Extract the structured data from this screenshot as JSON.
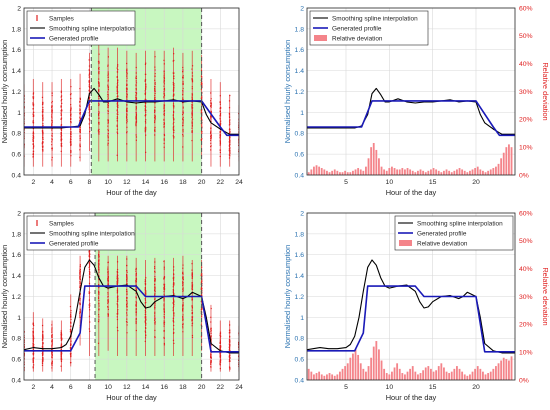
{
  "colors": {
    "samples": "#e02020",
    "spline": "#000000",
    "profile": "#1a1ab8",
    "deviation": "#f4848a",
    "axis_left_blue": "#2a72b0",
    "axis_right_red": "#e02020",
    "shade": "#c8f7c0",
    "dashed": "#555555"
  },
  "chart_data": [
    {
      "type": "line",
      "id": "panel-a",
      "xlabel": "Hour of the day",
      "ylabel": "Normalised hourly consumption",
      "xlim": [
        1,
        24
      ],
      "ylim": [
        0.4,
        2
      ],
      "xticks": [
        2,
        4,
        6,
        8,
        10,
        12,
        14,
        16,
        18,
        20,
        22,
        24
      ],
      "yticks": [
        0.4,
        0.6,
        0.8,
        1,
        1.2,
        1.4,
        1.6,
        1.8,
        2
      ],
      "grid": true,
      "shaded_range": [
        8.2,
        20
      ],
      "dashed_lines": [
        8.2,
        20
      ],
      "legend": {
        "position": "top-left",
        "entries": [
          "Samples",
          "Smoothing spline interpolation",
          "Generated profile"
        ]
      },
      "samples": {
        "hours": [
          1,
          2,
          3,
          4,
          5,
          6,
          7,
          8,
          9,
          10,
          11,
          12,
          13,
          14,
          15,
          16,
          17,
          18,
          19,
          20,
          21,
          22,
          23,
          24
        ],
        "center": [
          0.86,
          0.86,
          0.86,
          0.86,
          0.86,
          0.86,
          0.9,
          1.2,
          1.12,
          1.1,
          1.12,
          1.1,
          1.1,
          1.1,
          1.1,
          1.1,
          1.12,
          1.1,
          1.1,
          1.1,
          0.88,
          0.82,
          0.78,
          0.78
        ],
        "min": [
          0.45,
          0.45,
          0.45,
          0.45,
          0.45,
          0.45,
          0.5,
          0.6,
          0.5,
          0.5,
          0.5,
          0.5,
          0.5,
          0.5,
          0.5,
          0.5,
          0.5,
          0.5,
          0.5,
          0.55,
          0.45,
          0.45,
          0.45,
          0.5
        ],
        "max": [
          1.3,
          1.35,
          1.32,
          1.32,
          1.35,
          1.35,
          1.4,
          1.6,
          1.72,
          1.65,
          1.65,
          1.62,
          1.6,
          1.62,
          1.62,
          1.62,
          1.65,
          1.6,
          1.62,
          1.58,
          1.35,
          1.32,
          1.2,
          1.1
        ]
      },
      "series": [
        {
          "name": "Smoothing spline interpolation",
          "x": [
            1,
            2,
            3,
            4,
            5,
            6,
            7,
            7.5,
            8,
            8.5,
            9,
            9.5,
            10,
            11,
            12,
            13,
            14,
            15,
            16,
            17,
            18,
            19,
            20,
            20.5,
            21,
            22,
            23,
            24
          ],
          "y": [
            0.85,
            0.85,
            0.85,
            0.85,
            0.85,
            0.86,
            0.87,
            0.98,
            1.18,
            1.23,
            1.17,
            1.1,
            1.1,
            1.13,
            1.1,
            1.09,
            1.1,
            1.1,
            1.11,
            1.12,
            1.1,
            1.11,
            1.1,
            0.98,
            0.9,
            0.84,
            0.79,
            0.79
          ]
        },
        {
          "name": "Generated profile",
          "x": [
            1,
            6.8,
            8,
            20,
            22,
            22.7,
            24
          ],
          "y": [
            0.86,
            0.86,
            1.11,
            1.11,
            0.86,
            0.78,
            0.78
          ]
        }
      ]
    },
    {
      "type": "line",
      "id": "panel-b",
      "xlabel": "Hour of the day",
      "ylabel": "Normalised hourly consumption",
      "y2label": "Relative deviation",
      "xlim": [
        0.5,
        24.5
      ],
      "ylim": [
        0.4,
        2
      ],
      "y2lim": [
        0,
        60
      ],
      "xticks": [
        5,
        10,
        15,
        20
      ],
      "yticks": [
        0.4,
        0.6,
        0.8,
        1,
        1.2,
        1.4,
        1.6,
        1.8,
        2
      ],
      "y2ticks": [
        "0%",
        "10%",
        "20%",
        "30%",
        "40%",
        "50%",
        "60%"
      ],
      "grid": true,
      "legend": {
        "position": "top-left",
        "entries": [
          "Smoothing spline interpolation",
          "Generated profile",
          "Relative deviation"
        ]
      },
      "series": [
        {
          "name": "Smoothing spline interpolation",
          "x": [
            0.5,
            2,
            4,
            6,
            6.8,
            7.5,
            8,
            8.5,
            9,
            9.5,
            10,
            11,
            12,
            13,
            14,
            15,
            16,
            17,
            18,
            19,
            20,
            20.5,
            21,
            22,
            23,
            24,
            24.5
          ],
          "y": [
            0.85,
            0.85,
            0.85,
            0.85,
            0.87,
            0.98,
            1.18,
            1.23,
            1.17,
            1.1,
            1.1,
            1.13,
            1.1,
            1.09,
            1.1,
            1.1,
            1.11,
            1.12,
            1.1,
            1.11,
            1.1,
            0.98,
            0.9,
            0.84,
            0.79,
            0.79,
            0.79
          ]
        },
        {
          "name": "Generated profile",
          "x": [
            0.5,
            6.8,
            8,
            20,
            22,
            22.7,
            24.5
          ],
          "y": [
            0.86,
            0.86,
            1.11,
            1.11,
            0.86,
            0.78,
            0.78
          ]
        }
      ],
      "deviation": {
        "x": [
          0.7,
          1,
          1.3,
          1.6,
          1.9,
          2.2,
          2.5,
          2.8,
          3.1,
          3.4,
          3.7,
          4,
          4.3,
          4.6,
          4.9,
          5.2,
          5.5,
          5.8,
          6.1,
          6.4,
          6.7,
          7,
          7.3,
          7.6,
          7.9,
          8.2,
          8.5,
          8.8,
          9.1,
          9.4,
          9.7,
          10,
          10.3,
          10.6,
          10.9,
          11.2,
          11.5,
          11.8,
          12.1,
          12.4,
          12.7,
          13,
          13.3,
          13.6,
          13.9,
          14.2,
          14.5,
          14.8,
          15.1,
          15.4,
          15.7,
          16,
          16.3,
          16.6,
          16.9,
          17.2,
          17.5,
          17.8,
          18.1,
          18.4,
          18.7,
          19,
          19.3,
          19.6,
          19.9,
          20.2,
          20.5,
          20.8,
          21.1,
          21.4,
          21.7,
          22,
          22.3,
          22.6,
          22.9,
          23.2,
          23.5,
          23.8,
          24.1
        ],
        "y": [
          1,
          2,
          3,
          3.5,
          3,
          2.5,
          2,
          1.5,
          1,
          1.5,
          2,
          1.5,
          1,
          1,
          1.5,
          1,
          1,
          1.5,
          2,
          2.5,
          2,
          1.5,
          3,
          6,
          10,
          11.5,
          9,
          6,
          3,
          2,
          1.5,
          2.5,
          3,
          2.5,
          2,
          2,
          2.5,
          2,
          2.5,
          2,
          1.5,
          1,
          1.5,
          2,
          1.5,
          1,
          1.5,
          2,
          2.5,
          2,
          1.5,
          1,
          1.5,
          2,
          1.5,
          1,
          1.5,
          2,
          2.5,
          2,
          1.5,
          1,
          1.5,
          2,
          2.5,
          3,
          2,
          1.5,
          1,
          1.5,
          2,
          2.5,
          3,
          4,
          6,
          8,
          10,
          11,
          10
        ]
      }
    },
    {
      "type": "line",
      "id": "panel-c",
      "xlabel": "Hour of the day",
      "ylabel": "Normalised hourly consumption",
      "xlim": [
        1,
        24
      ],
      "ylim": [
        0.4,
        2
      ],
      "xticks": [
        2,
        4,
        6,
        8,
        10,
        12,
        14,
        16,
        18,
        20,
        22,
        24
      ],
      "yticks": [
        0.4,
        0.6,
        0.8,
        1,
        1.2,
        1.4,
        1.6,
        1.8,
        2
      ],
      "grid": true,
      "shaded_range": [
        8.6,
        20
      ],
      "dashed_lines": [
        8.6,
        20
      ],
      "legend": {
        "position": "top-left",
        "entries": [
          "Samples",
          "Smoothing spline interpolation",
          "Generated profile"
        ]
      },
      "samples": {
        "hours": [
          1,
          2,
          3,
          4,
          5,
          6,
          7,
          8,
          9,
          10,
          11,
          12,
          13,
          14,
          15,
          16,
          17,
          18,
          19,
          20,
          21,
          22,
          23,
          24
        ],
        "center": [
          0.68,
          0.7,
          0.7,
          0.7,
          0.7,
          0.78,
          1.3,
          1.52,
          1.42,
          1.3,
          1.3,
          1.3,
          1.25,
          1.1,
          1.2,
          1.2,
          1.2,
          1.22,
          1.22,
          1.2,
          0.7,
          0.68,
          0.67,
          0.67
        ],
        "min": [
          0.45,
          0.45,
          0.45,
          0.45,
          0.45,
          0.5,
          0.7,
          0.6,
          0.6,
          0.65,
          0.6,
          0.6,
          0.6,
          0.6,
          0.6,
          0.6,
          0.6,
          0.6,
          0.6,
          0.65,
          0.45,
          0.45,
          0.45,
          0.45
        ],
        "max": [
          1.02,
          1.08,
          1.02,
          1.0,
          1.0,
          1.25,
          1.62,
          1.85,
          1.75,
          1.62,
          1.62,
          1.62,
          1.6,
          1.58,
          1.6,
          1.58,
          1.6,
          1.62,
          1.58,
          1.58,
          1.15,
          1.0,
          1.0,
          0.95
        ]
      },
      "series": [
        {
          "name": "Smoothing spline interpolation",
          "x": [
            1,
            2,
            3,
            4,
            5,
            5.5,
            6,
            6.5,
            7,
            7.5,
            8,
            8.5,
            9,
            9.5,
            10,
            11,
            12,
            13,
            13.5,
            14,
            14.5,
            15,
            16,
            17,
            18,
            18.5,
            19,
            20,
            20.5,
            21,
            22,
            23,
            24
          ],
          "y": [
            0.69,
            0.71,
            0.7,
            0.7,
            0.71,
            0.74,
            0.82,
            1.0,
            1.25,
            1.48,
            1.55,
            1.5,
            1.38,
            1.3,
            1.28,
            1.3,
            1.31,
            1.25,
            1.15,
            1.09,
            1.1,
            1.15,
            1.2,
            1.21,
            1.18,
            1.2,
            1.24,
            1.2,
            1.0,
            0.75,
            0.68,
            0.66,
            0.66
          ]
        },
        {
          "name": "Generated profile",
          "x": [
            1,
            6,
            7,
            7.5,
            8,
            13,
            14,
            20,
            21,
            24
          ],
          "y": [
            0.68,
            0.68,
            0.85,
            1.3,
            1.3,
            1.3,
            1.2,
            1.2,
            0.67,
            0.67
          ]
        }
      ]
    },
    {
      "type": "line",
      "id": "panel-d",
      "xlabel": "Hour of the day",
      "ylabel": "Normalised hourly consumption",
      "y2label": "Relative deviation",
      "xlim": [
        0.5,
        24.5
      ],
      "ylim": [
        0.4,
        2
      ],
      "y2lim": [
        0,
        60
      ],
      "xticks": [
        5,
        10,
        15,
        20
      ],
      "yticks": [
        0.4,
        0.6,
        0.8,
        1,
        1.2,
        1.4,
        1.6,
        1.8,
        2
      ],
      "y2ticks": [
        "0%",
        "10%",
        "20%",
        "30%",
        "40%",
        "50%",
        "60%"
      ],
      "grid": true,
      "legend": {
        "position": "top-right",
        "entries": [
          "Smoothing spline interpolation",
          "Generated profile",
          "Relative deviation"
        ]
      },
      "series": [
        {
          "name": "Smoothing spline interpolation",
          "x": [
            0.5,
            2,
            3,
            4,
            5,
            5.5,
            6,
            6.5,
            7,
            7.5,
            8,
            8.5,
            9,
            9.5,
            10,
            11,
            12,
            13,
            13.5,
            14,
            14.5,
            15,
            16,
            17,
            18,
            18.5,
            19,
            20,
            20.5,
            21,
            22,
            23,
            24,
            24.5
          ],
          "y": [
            0.69,
            0.71,
            0.7,
            0.7,
            0.71,
            0.74,
            0.82,
            1.0,
            1.25,
            1.48,
            1.55,
            1.5,
            1.38,
            1.3,
            1.28,
            1.3,
            1.31,
            1.25,
            1.15,
            1.09,
            1.1,
            1.15,
            1.2,
            1.21,
            1.18,
            1.2,
            1.24,
            1.2,
            1.0,
            0.75,
            0.68,
            0.66,
            0.66,
            0.66
          ]
        },
        {
          "name": "Generated profile",
          "x": [
            0.5,
            6,
            7,
            7.5,
            8,
            13,
            14,
            20,
            21,
            24.5
          ],
          "y": [
            0.68,
            0.68,
            0.85,
            1.3,
            1.3,
            1.3,
            1.2,
            1.2,
            0.67,
            0.67
          ]
        }
      ],
      "deviation": {
        "x": [
          0.7,
          1,
          1.3,
          1.6,
          1.9,
          2.2,
          2.5,
          2.8,
          3.1,
          3.4,
          3.7,
          4,
          4.3,
          4.6,
          4.9,
          5.2,
          5.5,
          5.8,
          6.1,
          6.4,
          6.7,
          7,
          7.3,
          7.6,
          7.9,
          8.2,
          8.5,
          8.8,
          9.1,
          9.4,
          9.7,
          10,
          10.3,
          10.6,
          10.9,
          11.2,
          11.5,
          11.8,
          12.1,
          12.4,
          12.7,
          13,
          13.3,
          13.6,
          13.9,
          14.2,
          14.5,
          14.8,
          15.1,
          15.4,
          15.7,
          16,
          16.3,
          16.6,
          16.9,
          17.2,
          17.5,
          17.8,
          18.1,
          18.4,
          18.7,
          19,
          19.3,
          19.6,
          19.9,
          20.2,
          20.5,
          20.8,
          21.1,
          21.4,
          21.7,
          22,
          22.3,
          22.6,
          22.9,
          23.2,
          23.5,
          23.8,
          24.1
        ],
        "y": [
          4,
          3,
          2,
          2.5,
          3,
          2,
          1.5,
          2,
          2.5,
          2,
          1.5,
          2,
          3,
          4,
          5,
          6,
          8,
          9.5,
          11,
          9,
          6,
          4,
          3,
          5,
          8,
          12,
          14,
          11,
          7,
          4,
          2.5,
          2,
          3,
          4.5,
          6,
          4,
          2.5,
          2,
          3,
          4,
          5,
          3,
          2,
          2.5,
          3.5,
          4.5,
          5,
          4,
          3,
          3.5,
          5,
          6,
          4.5,
          3,
          2.5,
          3,
          4,
          5,
          4,
          3,
          2,
          1.5,
          2,
          3,
          4,
          5,
          4,
          3,
          2,
          2.5,
          3,
          4,
          5,
          6,
          7,
          8,
          7.5,
          7,
          8.5
        ]
      }
    }
  ]
}
